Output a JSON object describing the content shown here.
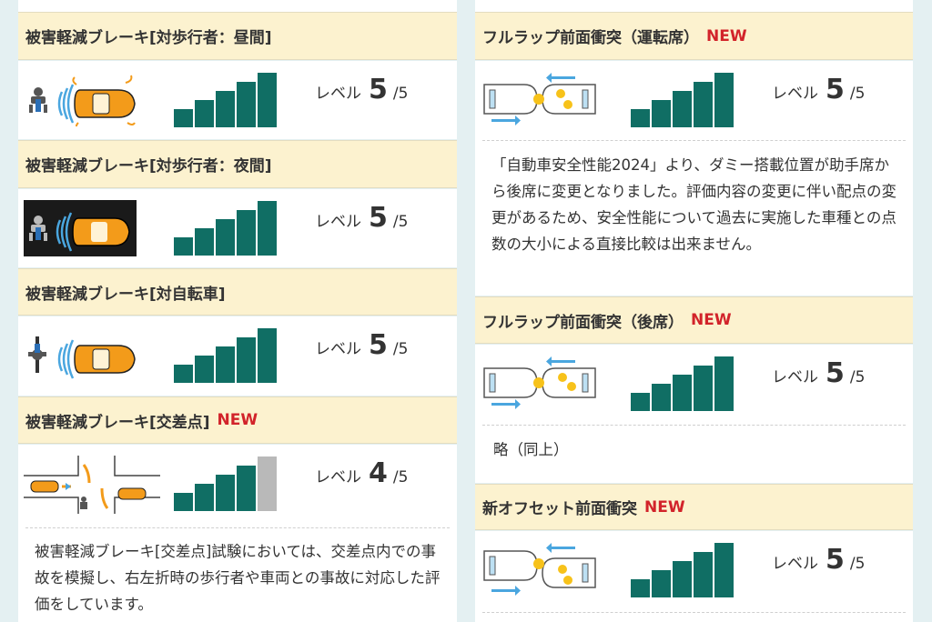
{
  "left": {
    "sections": [
      {
        "title": "被害軽減ブレーキ[対歩行者：昼間]",
        "new": "",
        "level_prefix": "レベル",
        "level": "5",
        "level_suffix": "/5",
        "score": 5
      },
      {
        "title": "被害軽減ブレーキ[対歩行者：夜間]",
        "new": "",
        "level_prefix": "レベル",
        "level": "5",
        "level_suffix": "/5",
        "score": 5
      },
      {
        "title": "被害軽減ブレーキ[対自転車]",
        "new": "",
        "level_prefix": "レベル",
        "level": "5",
        "level_suffix": "/5",
        "score": 5
      },
      {
        "title": "被害軽減ブレーキ[交差点]",
        "new": "NEW",
        "level_prefix": "レベル",
        "level": "4",
        "level_suffix": "/5",
        "score": 4,
        "note": "被害軽減ブレーキ[交差点]試験においては、交差点内での事故を模擬し、右左折時の歩行者や車両との事故に対応した評価をしています。"
      }
    ]
  },
  "right": {
    "sections": [
      {
        "title": "フルラップ前面衝突（運転席）",
        "new": "NEW",
        "level_prefix": "レベル",
        "level": "5",
        "level_suffix": "/5",
        "score": 5,
        "note": "「自動車安全性能2024」より、ダミー搭載位置が助手席から後席に変更となりました。評価内容の変更に伴い配点の変更があるため、安全性能について過去に実施した車種との点数の大小による直接比較は出来ません。"
      },
      {
        "title": "フルラップ前面衝突（後席）",
        "new": "NEW",
        "level_prefix": "レベル",
        "level": "5",
        "level_suffix": "/5",
        "score": 5,
        "note": "略（同上）"
      },
      {
        "title": "新オフセット前面衝突",
        "new": "NEW",
        "level_prefix": "レベル",
        "level": "5",
        "level_suffix": "/5",
        "score": 5
      }
    ]
  },
  "colors": {
    "bar_on": "#106e64",
    "bar_off": "#b9b9b9",
    "new_badge": "#d2232a",
    "header_bg": "#fcf2cf"
  }
}
